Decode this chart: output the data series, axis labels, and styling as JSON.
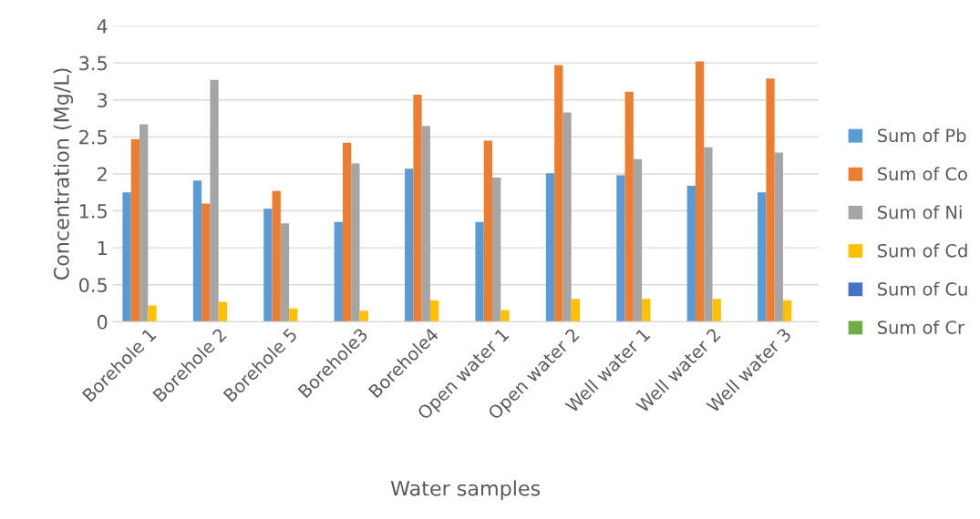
{
  "chart_data": {
    "type": "bar",
    "xlabel": "Water samples",
    "ylabel": "Concentration (Mg/L)",
    "categories": [
      "Borehole 1",
      "Borehole 2",
      "Borehole 5",
      "Borehole3",
      "Borehole4",
      "Open water 1",
      "Open water 2",
      "Well water 1",
      "Well water 2",
      "Well water 3"
    ],
    "series": [
      {
        "name": "Sum of Pb",
        "color": "#5b9bd5",
        "values": [
          1.75,
          1.91,
          1.53,
          1.35,
          2.07,
          1.35,
          2.01,
          1.98,
          1.84,
          1.75
        ]
      },
      {
        "name": "Sum of Co",
        "color": "#ed7d31",
        "values": [
          2.47,
          1.6,
          1.77,
          2.42,
          3.07,
          2.45,
          3.47,
          3.11,
          3.52,
          3.29
        ]
      },
      {
        "name": "Sum of Ni",
        "color": "#a5a5a5",
        "values": [
          2.67,
          3.27,
          1.33,
          2.14,
          2.65,
          1.95,
          2.83,
          2.2,
          2.36,
          2.29
        ]
      },
      {
        "name": "Sum of Cd",
        "color": "#ffc000",
        "values": [
          0.22,
          0.27,
          0.18,
          0.15,
          0.29,
          0.16,
          0.31,
          0.31,
          0.31,
          0.29
        ]
      },
      {
        "name": "Sum of Cu",
        "color": "#4472c4",
        "values": [
          0,
          0,
          0,
          0,
          0,
          0,
          0,
          0,
          0,
          0
        ]
      },
      {
        "name": "Sum of Cr",
        "color": "#70ad47",
        "values": [
          0,
          0,
          0,
          0,
          0,
          0,
          0,
          0,
          0,
          0
        ]
      }
    ],
    "ylim": [
      0,
      4
    ],
    "yticks": [
      0,
      0.5,
      1,
      1.5,
      2,
      2.5,
      3,
      3.5,
      4
    ],
    "grid": "y",
    "legend": "right"
  }
}
